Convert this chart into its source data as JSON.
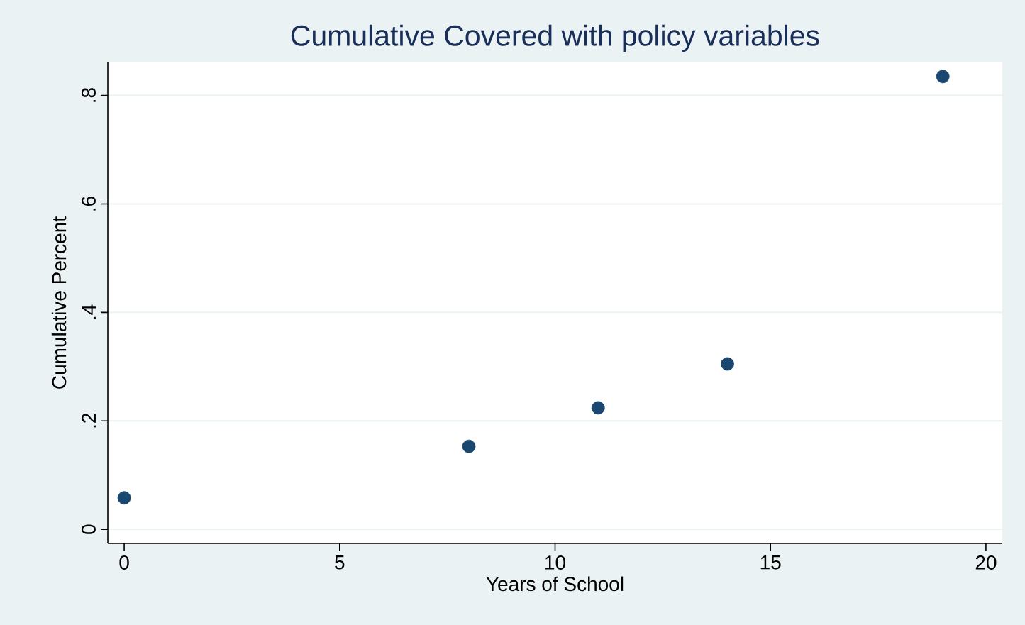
{
  "chart_data": {
    "type": "scatter",
    "title": "Cumulative Covered with policy variables",
    "xlabel": "Years of School",
    "ylabel": "Cumulative Percent",
    "x": [
      0,
      8,
      11,
      14,
      19
    ],
    "values": [
      0.058,
      0.153,
      0.224,
      0.305,
      0.835
    ],
    "color": "#1a476f",
    "xlim": [
      -0.38,
      20.38
    ],
    "ylim": [
      -0.026,
      0.861
    ],
    "xticks": [
      0,
      5,
      10,
      15,
      20
    ],
    "yticks": [
      0,
      {
        "value": 0.2,
        "label": ".2"
      },
      {
        "value": 0.4,
        "label": ".4"
      },
      {
        "value": 0.6,
        "label": ".6"
      },
      {
        "value": 0.8,
        "label": ".8"
      }
    ],
    "grid": "y"
  }
}
